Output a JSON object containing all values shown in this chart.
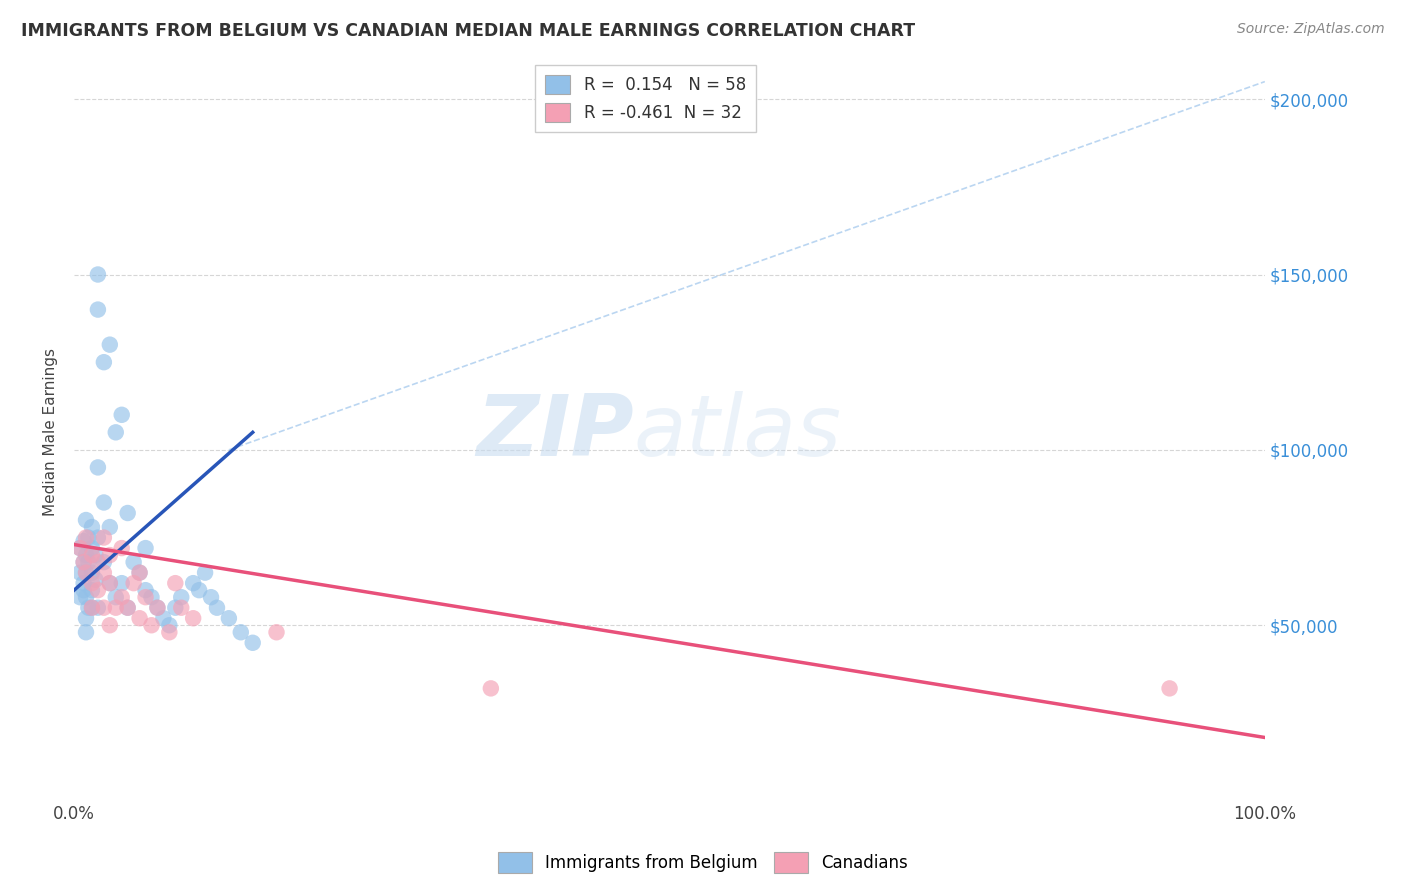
{
  "title": "IMMIGRANTS FROM BELGIUM VS CANADIAN MEDIAN MALE EARNINGS CORRELATION CHART",
  "source": "Source: ZipAtlas.com",
  "ylabel": "Median Male Earnings",
  "xlim": [
    0,
    1
  ],
  "ylim": [
    0,
    210000
  ],
  "ytick_positions": [
    50000,
    100000,
    150000,
    200000
  ],
  "ytick_labels": [
    "$50,000",
    "$100,000",
    "$150,000",
    "$200,000"
  ],
  "blue_R": "0.154",
  "blue_N": "58",
  "pink_R": "-0.461",
  "pink_N": "32",
  "blue_color": "#92C0E8",
  "pink_color": "#F4A0B4",
  "blue_line_color": "#2855B8",
  "pink_line_color": "#E8507A",
  "watermark_zip": "ZIP",
  "watermark_atlas": "atlas",
  "blue_scatter_x": [
    0.005,
    0.005,
    0.005,
    0.008,
    0.008,
    0.008,
    0.008,
    0.01,
    0.01,
    0.01,
    0.01,
    0.01,
    0.01,
    0.012,
    0.012,
    0.012,
    0.015,
    0.015,
    0.015,
    0.015,
    0.015,
    0.018,
    0.018,
    0.02,
    0.02,
    0.02,
    0.02,
    0.02,
    0.025,
    0.025,
    0.025,
    0.03,
    0.03,
    0.03,
    0.035,
    0.035,
    0.04,
    0.04,
    0.045,
    0.045,
    0.05,
    0.055,
    0.06,
    0.06,
    0.065,
    0.07,
    0.075,
    0.08,
    0.085,
    0.09,
    0.1,
    0.105,
    0.11,
    0.115,
    0.12,
    0.13,
    0.14,
    0.15
  ],
  "blue_scatter_y": [
    65000,
    72000,
    58000,
    62000,
    68000,
    74000,
    60000,
    80000,
    70000,
    65000,
    58000,
    52000,
    48000,
    75000,
    68000,
    55000,
    78000,
    72000,
    65000,
    60000,
    55000,
    70000,
    63000,
    150000,
    140000,
    95000,
    75000,
    55000,
    125000,
    85000,
    68000,
    130000,
    78000,
    62000,
    105000,
    58000,
    110000,
    62000,
    82000,
    55000,
    68000,
    65000,
    72000,
    60000,
    58000,
    55000,
    52000,
    50000,
    55000,
    58000,
    62000,
    60000,
    65000,
    58000,
    55000,
    52000,
    48000,
    45000
  ],
  "pink_scatter_x": [
    0.005,
    0.008,
    0.01,
    0.01,
    0.015,
    0.015,
    0.015,
    0.02,
    0.02,
    0.025,
    0.025,
    0.025,
    0.03,
    0.03,
    0.03,
    0.035,
    0.04,
    0.04,
    0.045,
    0.05,
    0.055,
    0.055,
    0.06,
    0.065,
    0.07,
    0.08,
    0.085,
    0.09,
    0.1,
    0.17,
    0.35,
    0.92
  ],
  "pink_scatter_y": [
    72000,
    68000,
    75000,
    65000,
    70000,
    62000,
    55000,
    68000,
    60000,
    75000,
    65000,
    55000,
    70000,
    62000,
    50000,
    55000,
    72000,
    58000,
    55000,
    62000,
    65000,
    52000,
    58000,
    50000,
    55000,
    48000,
    62000,
    55000,
    52000,
    48000,
    32000,
    32000
  ],
  "blue_line_x": [
    0.0,
    0.15
  ],
  "blue_line_y": [
    60000,
    105000
  ],
  "pink_line_x": [
    0.0,
    1.0
  ],
  "pink_line_y": [
    73000,
    18000
  ],
  "diag_line_x": [
    0.13,
    1.0
  ],
  "diag_line_y": [
    100000,
    205000
  ],
  "legend_labels": [
    "Immigrants from Belgium",
    "Canadians"
  ],
  "background_color": "#FFFFFF",
  "grid_color": "#CCCCCC"
}
